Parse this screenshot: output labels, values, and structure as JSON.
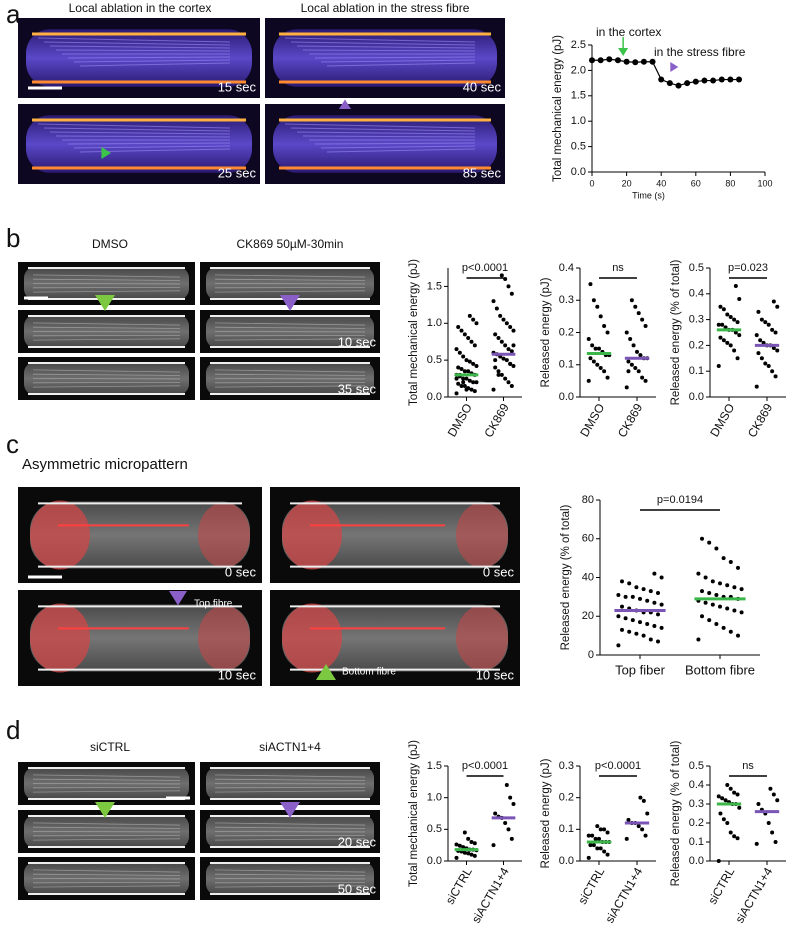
{
  "figure": {
    "panel_labels": [
      "a",
      "b",
      "c",
      "d"
    ],
    "a": {
      "headers": [
        "Local ablation in the cortex",
        "Local ablation in the stress fibre"
      ],
      "timestamps": [
        "15 sec",
        "40 sec",
        "25 sec",
        "85 sec"
      ]
    },
    "b": {
      "headers": [
        "DMSO",
        "CK869 50µM-30min"
      ],
      "timestamps": [
        "10 sec",
        "35 sec"
      ]
    },
    "c": {
      "title": "Asymmetric micropattern",
      "timestamps": [
        "0 sec",
        "0 sec",
        "10 sec",
        "10 sec"
      ],
      "arrow_labels": [
        "Top fibre",
        "Bottom fibre"
      ]
    },
    "d": {
      "headers": [
        "siCTRL",
        "siACTN1+4"
      ],
      "timestamps": [
        "20 sec",
        "50 sec"
      ]
    }
  },
  "chart_data": [
    {
      "type": "line",
      "ylabel": "Total mechanical energy (pJ)",
      "xlabel": "Time (s)",
      "annotations": [
        "in the cortex",
        "in the stress fibre"
      ],
      "x": [
        0,
        5,
        10,
        15,
        20,
        25,
        30,
        35,
        40,
        45,
        50,
        55,
        60,
        65,
        70,
        75,
        80,
        85
      ],
      "series": [
        {
          "color": "#000000",
          "values": [
            2.2,
            2.2,
            2.22,
            2.2,
            2.17,
            2.16,
            2.17,
            2.17,
            1.82,
            1.75,
            1.7,
            1.75,
            1.78,
            1.8,
            1.8,
            1.82,
            1.82,
            1.82
          ]
        }
      ],
      "xlim": [
        0,
        100
      ],
      "xticks": [
        0,
        20,
        40,
        60,
        80,
        100
      ],
      "ylim": [
        0,
        2.5
      ],
      "yticks": [
        {
          "value": 0,
          "label": "0.0"
        },
        0.5,
        {
          "value": 1,
          "label": "1.0"
        },
        1.5,
        {
          "value": 2,
          "label": "2.0"
        },
        2.5
      ]
    },
    {
      "type": "strip",
      "ylabel": "Total mechanical energy (pJ)",
      "annotation": "p<0.0001",
      "categories": [
        "DMSO",
        "CK869"
      ],
      "medians": [
        0.3,
        0.58
      ],
      "median_colors": [
        "#3cb64a",
        "#7a55b5"
      ],
      "values": [
        [
          0.05,
          0.08,
          0.1,
          0.12,
          0.15,
          0.15,
          0.18,
          0.2,
          0.2,
          0.22,
          0.25,
          0.25,
          0.28,
          0.3,
          0.3,
          0.32,
          0.35,
          0.35,
          0.38,
          0.4,
          0.42,
          0.45,
          0.48,
          0.5,
          0.55,
          0.6,
          0.65,
          0.7,
          0.75,
          0.8,
          0.85,
          0.9,
          0.95,
          1.0,
          1.05,
          1.1,
          0.1,
          0.2,
          0.3,
          0.25
        ],
        [
          0.1,
          0.15,
          0.2,
          0.25,
          0.3,
          0.35,
          0.4,
          0.42,
          0.45,
          0.5,
          0.52,
          0.55,
          0.58,
          0.6,
          0.62,
          0.65,
          0.7,
          0.75,
          0.8,
          0.85,
          0.9,
          0.95,
          1.0,
          1.05,
          1.1,
          1.2,
          1.3,
          1.4,
          1.5,
          1.6,
          1.65,
          0.3,
          0.5,
          0.7,
          0.45
        ]
      ],
      "ylim": [
        0,
        1.75
      ],
      "yticks": [
        {
          "value": 0,
          "label": "0.0"
        },
        0.5,
        {
          "value": 1,
          "label": "1.0"
        },
        1.5
      ]
    },
    {
      "type": "strip",
      "ylabel": "Released energy (pJ)",
      "annotation": "ns",
      "categories": [
        "DMSO",
        "CK869"
      ],
      "medians": [
        0.135,
        0.12
      ],
      "median_colors": [
        "#3cb64a",
        "#7a55b5"
      ],
      "values": [
        [
          0.05,
          0.06,
          0.08,
          0.09,
          0.1,
          0.11,
          0.12,
          0.13,
          0.13,
          0.14,
          0.15,
          0.15,
          0.16,
          0.18,
          0.2,
          0.22,
          0.25,
          0.28,
          0.3,
          0.35
        ],
        [
          0.03,
          0.05,
          0.06,
          0.08,
          0.09,
          0.1,
          0.11,
          0.12,
          0.12,
          0.13,
          0.14,
          0.16,
          0.18,
          0.2,
          0.22,
          0.24,
          0.26,
          0.28,
          0.3,
          0.08
        ]
      ],
      "ylim": [
        0,
        0.4
      ],
      "yticks": [
        {
          "value": 0,
          "label": "0.0"
        },
        0.1,
        0.2,
        0.3,
        0.4
      ]
    },
    {
      "type": "strip",
      "ylabel": "Released energy (% of total)",
      "annotation": "p=0.023",
      "categories": [
        "DMSO",
        "CK869"
      ],
      "medians": [
        0.26,
        0.2
      ],
      "median_colors": [
        "#3cb64a",
        "#7a55b5"
      ],
      "values": [
        [
          0.12,
          0.15,
          0.18,
          0.2,
          0.21,
          0.22,
          0.23,
          0.24,
          0.25,
          0.26,
          0.26,
          0.27,
          0.28,
          0.28,
          0.29,
          0.3,
          0.31,
          0.32,
          0.34,
          0.35,
          0.38,
          0.43
        ],
        [
          0.04,
          0.08,
          0.1,
          0.12,
          0.13,
          0.15,
          0.17,
          0.18,
          0.19,
          0.2,
          0.2,
          0.21,
          0.22,
          0.24,
          0.25,
          0.26,
          0.28,
          0.29,
          0.3,
          0.33,
          0.35,
          0.37
        ]
      ],
      "ylim": [
        0,
        0.5
      ],
      "yticks": [
        {
          "value": 0,
          "label": "0.0"
        },
        0.1,
        0.2,
        0.3,
        0.4,
        0.5
      ]
    },
    {
      "type": "strip",
      "ylabel": "Released energy (% of total)",
      "annotation": "p=0.0194",
      "categories": [
        "Top fiber",
        "Bottom fibre"
      ],
      "medians": [
        23,
        29
      ],
      "median_colors": [
        "#7a55b5",
        "#3cb64a"
      ],
      "values": [
        [
          5,
          7,
          8,
          10,
          11,
          12,
          13,
          14,
          15,
          16,
          17,
          18,
          19,
          20,
          21,
          22,
          22,
          23,
          24,
          25,
          26,
          27,
          28,
          29,
          30,
          30,
          31,
          32,
          33,
          34,
          35,
          37,
          38,
          40,
          42
        ],
        [
          8,
          10,
          12,
          14,
          16,
          18,
          20,
          22,
          23,
          24,
          25,
          26,
          27,
          28,
          29,
          30,
          30,
          31,
          32,
          33,
          34,
          35,
          36,
          37,
          38,
          40,
          42,
          45,
          48,
          50,
          55,
          58,
          60
        ]
      ],
      "ylim": [
        0,
        80
      ],
      "yticks": [
        0,
        20,
        40,
        60,
        80
      ]
    },
    {
      "type": "strip",
      "ylabel": "Total mechanical energy (pJ)",
      "annotation": "p<0.0001",
      "categories": [
        "siCTRL",
        "siACTN1+4"
      ],
      "medians": [
        0.18,
        0.68
      ],
      "median_colors": [
        "#3cb64a",
        "#7a55b5"
      ],
      "values": [
        [
          0.05,
          0.08,
          0.1,
          0.12,
          0.13,
          0.15,
          0.16,
          0.17,
          0.18,
          0.18,
          0.2,
          0.22,
          0.24,
          0.26,
          0.28,
          0.3,
          0.35,
          0.45
        ],
        [
          0.25,
          0.35,
          0.5,
          0.6,
          0.68,
          0.7,
          0.75,
          0.9,
          1.0,
          1.2
        ]
      ],
      "ylim": [
        0,
        1.5
      ],
      "yticks": [
        {
          "value": 0,
          "label": "0.0"
        },
        0.5,
        {
          "value": 1,
          "label": "1.0"
        },
        1.5
      ]
    },
    {
      "type": "strip",
      "ylabel": "Released energy (pJ)",
      "annotation": "p<0.0001",
      "categories": [
        "siCTRL",
        "siACTN1+4"
      ],
      "medians": [
        0.06,
        0.12
      ],
      "median_colors": [
        "#3cb64a",
        "#7a55b5"
      ],
      "values": [
        [
          0.01,
          0.02,
          0.03,
          0.04,
          0.04,
          0.05,
          0.05,
          0.06,
          0.06,
          0.06,
          0.07,
          0.07,
          0.08,
          0.08,
          0.09,
          0.1,
          0.1,
          0.11
        ],
        [
          0.07,
          0.08,
          0.1,
          0.11,
          0.12,
          0.12,
          0.13,
          0.15,
          0.19,
          0.2
        ]
      ],
      "ylim": [
        0,
        0.3
      ],
      "yticks": [
        {
          "value": 0,
          "label": "0.0"
        },
        0.1,
        0.2,
        0.3
      ]
    },
    {
      "type": "strip",
      "ylabel": "Released energy (% of total)",
      "annotation": "ns",
      "categories": [
        "siCTRL",
        "siACTN1+4"
      ],
      "medians": [
        0.3,
        0.26
      ],
      "median_colors": [
        "#3cb64a",
        "#7a55b5"
      ],
      "values": [
        [
          0.0,
          0.12,
          0.13,
          0.15,
          0.2,
          0.22,
          0.25,
          0.28,
          0.3,
          0.3,
          0.31,
          0.32,
          0.33,
          0.34,
          0.35,
          0.36,
          0.38,
          0.4
        ],
        [
          0.09,
          0.1,
          0.15,
          0.2,
          0.25,
          0.27,
          0.3,
          0.32,
          0.35,
          0.38
        ]
      ],
      "ylim": [
        0,
        0.5
      ],
      "yticks": [
        {
          "value": 0,
          "label": "0.0"
        },
        0.1,
        0.2,
        0.3,
        0.4,
        0.5
      ]
    }
  ]
}
